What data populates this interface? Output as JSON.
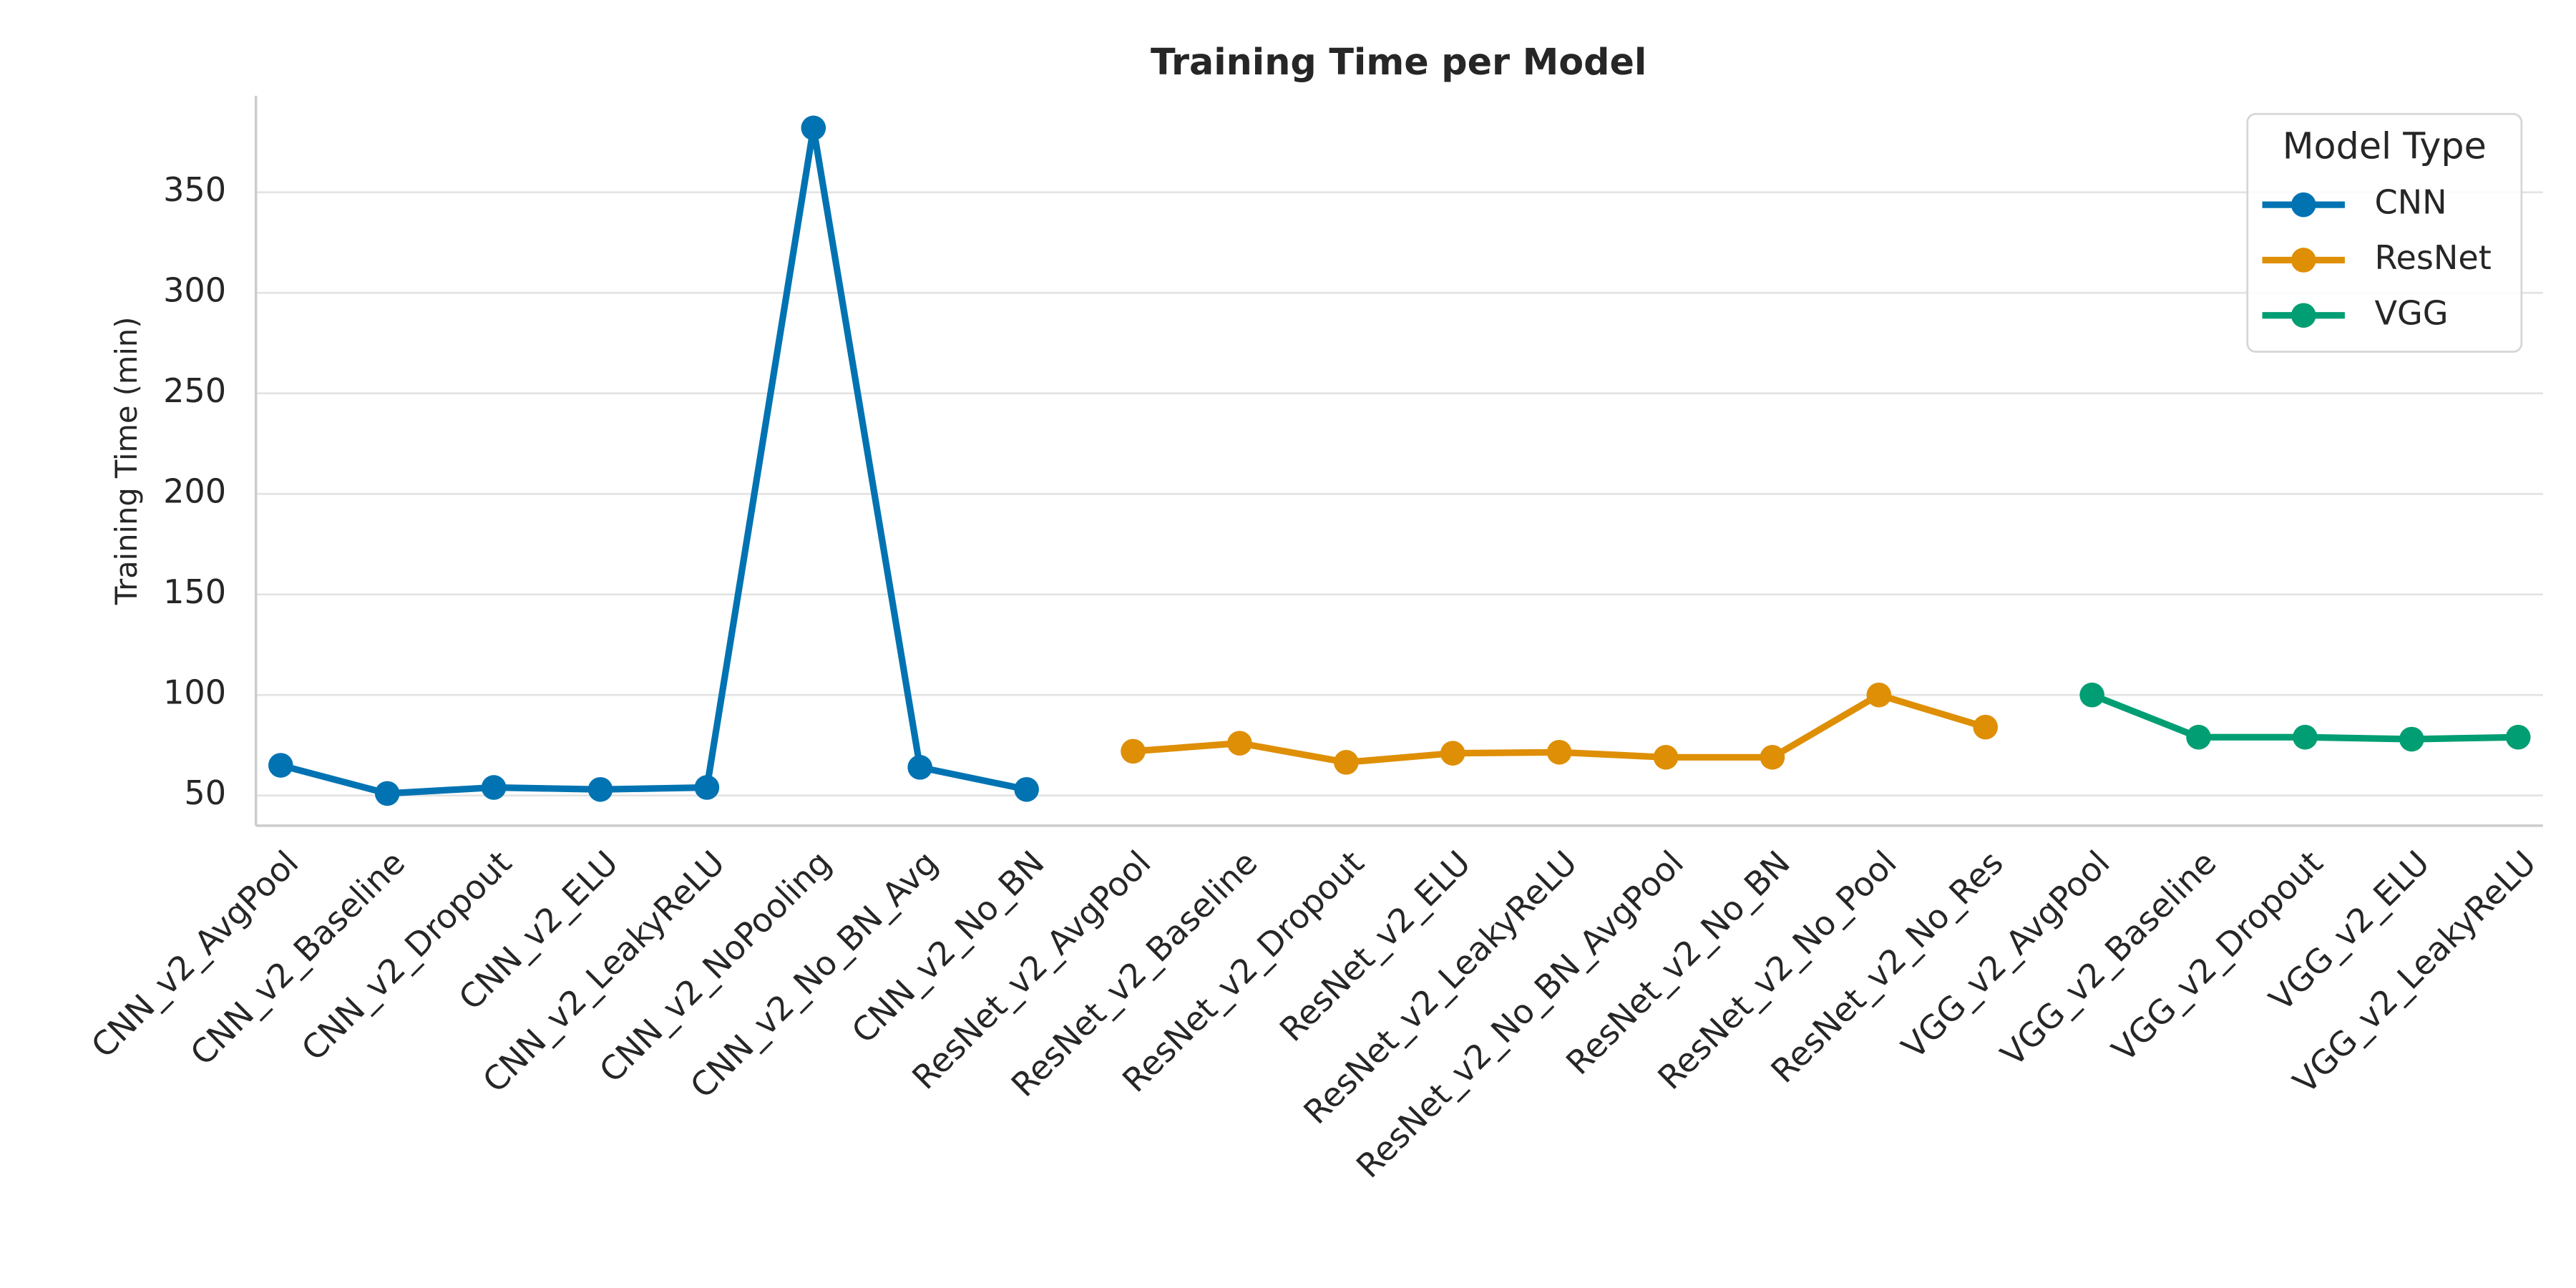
{
  "chart_data": {
    "type": "line",
    "title": "Training Time per Model",
    "ylabel": "Training Time (min)",
    "legend_title": "Model Type",
    "legend": "upper right",
    "grid": true,
    "categories": [
      "CNN_v2_AvgPool",
      "CNN_v2_Baseline",
      "CNN_v2_Dropout",
      "CNN_v2_ELU",
      "CNN_v2_LeakyReLU",
      "CNN_v2_NoPooling",
      "CNN_v2_No_BN_Avg",
      "CNN_v2_No_BN",
      "ResNet_v2_AvgPool",
      "ResNet_v2_Baseline",
      "ResNet_v2_Dropout",
      "ResNet_v2_ELU",
      "ResNet_v2_LeakyReLU",
      "ResNet_v2_No_BN_AvgPool",
      "ResNet_v2_No_BN",
      "ResNet_v2_No_Pool",
      "ResNet_v2_No_Res",
      "VGG_v2_AvgPool",
      "VGG_v2_Baseline",
      "VGG_v2_Dropout",
      "VGG_v2_ELU",
      "VGG_v2_LeakyReLU"
    ],
    "series": [
      {
        "name": "CNN",
        "color": "#0173b2",
        "values": [
          65,
          51,
          54,
          53,
          54,
          382,
          64,
          53,
          null,
          null,
          null,
          null,
          null,
          null,
          null,
          null,
          null,
          null,
          null,
          null,
          null,
          null
        ]
      },
      {
        "name": "ResNet",
        "color": "#de8f05",
        "values": [
          null,
          null,
          null,
          null,
          null,
          null,
          null,
          null,
          72,
          76,
          66.5,
          71,
          71.5,
          69,
          69,
          100,
          84,
          null,
          null,
          null,
          null,
          null
        ]
      },
      {
        "name": "VGG",
        "color": "#029e73",
        "values": [
          null,
          null,
          null,
          null,
          null,
          null,
          null,
          null,
          null,
          null,
          null,
          null,
          null,
          null,
          null,
          null,
          null,
          100,
          79,
          79,
          78,
          79
        ]
      }
    ],
    "ylim": [
      35,
      398
    ],
    "yticks": [
      50,
      100,
      150,
      200,
      250,
      300,
      350
    ]
  }
}
